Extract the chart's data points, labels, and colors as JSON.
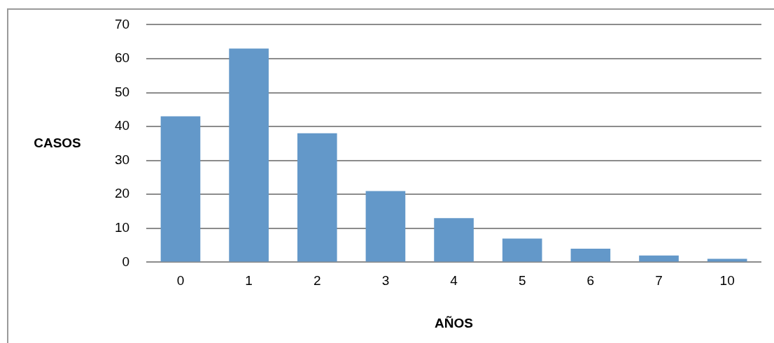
{
  "chart_data": {
    "type": "bar",
    "xlabel": "AÑOS",
    "ylabel": "CASOS",
    "categories": [
      "0",
      "1",
      "2",
      "3",
      "4",
      "5",
      "6",
      "7",
      "10"
    ],
    "values": [
      43,
      63,
      38,
      21,
      13,
      7,
      4,
      2,
      1
    ],
    "color": "#6398c9",
    "ylim": [
      0,
      70
    ],
    "yticks": [
      0,
      10,
      20,
      30,
      40,
      50,
      60,
      70
    ],
    "grid": "y",
    "legend": false
  }
}
